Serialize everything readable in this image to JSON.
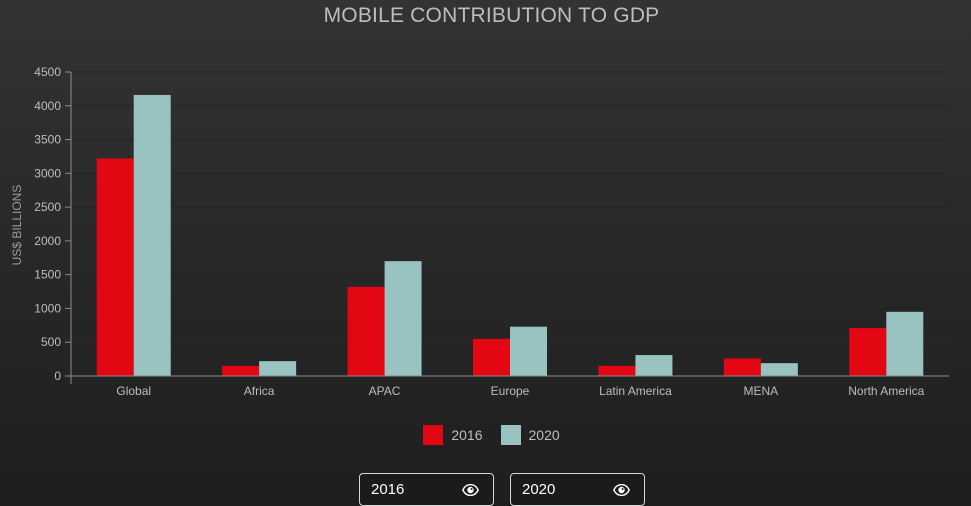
{
  "chart_data": {
    "type": "bar",
    "title": "MOBILE CONTRIBUTION TO GDP",
    "ylabel": "US$ BILLIONS",
    "xlabel": "",
    "ylim": [
      0,
      4500
    ],
    "yticks": [
      0,
      500,
      1000,
      1500,
      2000,
      2500,
      3000,
      3500,
      4000,
      4500
    ],
    "categories": [
      "Global",
      "Africa",
      "APAC",
      "Europe",
      "Latin America",
      "MENA",
      "North America"
    ],
    "series": [
      {
        "name": "2016",
        "color": "#e30613",
        "values": [
          3220,
          150,
          1320,
          550,
          150,
          260,
          710
        ]
      },
      {
        "name": "2020",
        "color": "#99c3c0",
        "values": [
          4160,
          220,
          1700,
          730,
          310,
          190,
          950
        ]
      }
    ],
    "grid": true,
    "legend": "bottom-center"
  },
  "controls": {
    "toggle_2016": "2016",
    "toggle_2020": "2020",
    "toggle_icon": "eye-icon"
  }
}
